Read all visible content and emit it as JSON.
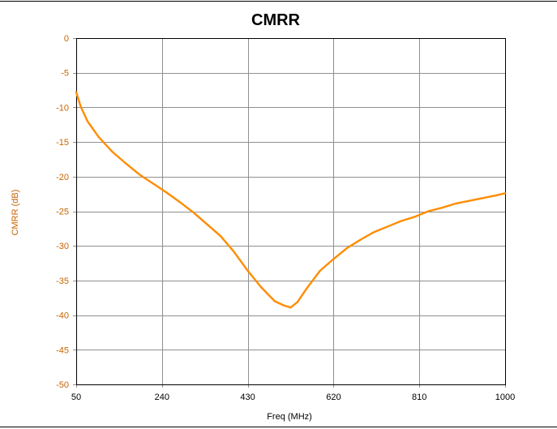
{
  "chart_data": {
    "type": "line",
    "title": "CMRR",
    "xlabel": "Freq (MHz)",
    "ylabel": "CMRR (dB)",
    "xlim": [
      50,
      1000
    ],
    "ylim": [
      -50,
      0
    ],
    "x_ticks": [
      50,
      240,
      430,
      620,
      810,
      1000
    ],
    "y_ticks": [
      0,
      -5,
      -10,
      -15,
      -20,
      -25,
      -30,
      -35,
      -40,
      -45,
      -50
    ],
    "grid": true,
    "legend": "none",
    "colors": {
      "series": "#ff8c00",
      "ylabel": "#c86400",
      "grid": "#909090",
      "axis": "#000000"
    },
    "series": [
      {
        "x": [
          50,
          60,
          75,
          100,
          130,
          160,
          190,
          220,
          250,
          280,
          310,
          340,
          370,
          400,
          430,
          460,
          490,
          510,
          525,
          540,
          560,
          590,
          620,
          650,
          680,
          710,
          740,
          770,
          800,
          830,
          860,
          890,
          920,
          950,
          980,
          1000
        ],
        "values": [
          -7.8,
          -9.9,
          -12.0,
          -14.3,
          -16.4,
          -18.1,
          -19.7,
          -21.0,
          -22.3,
          -23.7,
          -25.2,
          -26.9,
          -28.6,
          -30.9,
          -33.6,
          -36.0,
          -38.0,
          -38.6,
          -38.9,
          -38.1,
          -36.2,
          -33.6,
          -31.9,
          -30.3,
          -29.1,
          -28.0,
          -27.2,
          -26.4,
          -25.8,
          -25.0,
          -24.5,
          -23.9,
          -23.5,
          -23.1,
          -22.7,
          -22.4
        ]
      }
    ]
  }
}
